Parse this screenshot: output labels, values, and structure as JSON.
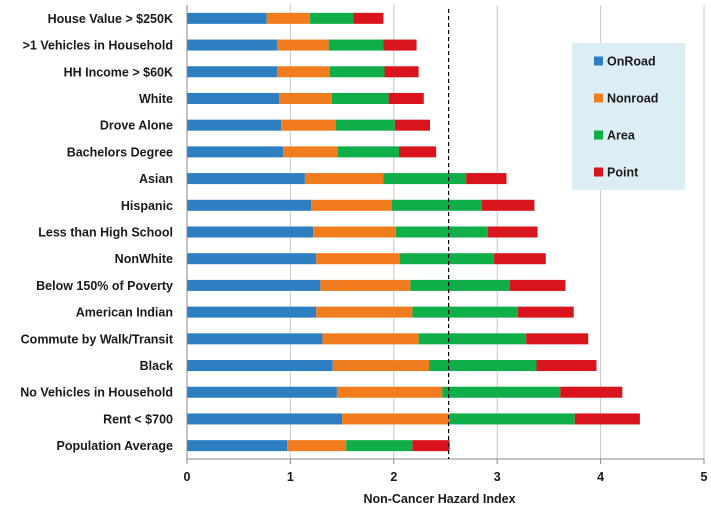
{
  "chart_data": {
    "type": "bar",
    "orientation": "horizontal",
    "stacked": true,
    "title": "",
    "xlabel": "Non-Cancer Hazard Index",
    "ylabel": "",
    "xlim": [
      0,
      5
    ],
    "xticks": [
      "0",
      "1",
      "2",
      "3",
      "4",
      "5"
    ],
    "grid": "vertical",
    "reference_line": 2.53,
    "legend_position": "top-right",
    "categories": [
      "House Value > $250K",
      ">1 Vehicles in Household",
      "HH Income > $60K",
      "White",
      "Drove Alone",
      "Bachelors Degree",
      "Asian",
      "Hispanic",
      "Less than High School",
      "NonWhite",
      "Below 150% of Poverty",
      "American Indian",
      "Commute by Walk/Transit",
      "Black",
      "No Vehicles in Household",
      "Rent < $700",
      "Population Average"
    ],
    "series": [
      {
        "name": "OnRoad",
        "color": "#2e7fc2",
        "values": [
          0.77,
          0.87,
          0.87,
          0.89,
          0.91,
          0.93,
          1.14,
          1.2,
          1.22,
          1.25,
          1.29,
          1.25,
          1.31,
          1.41,
          1.45,
          1.5,
          0.97
        ]
      },
      {
        "name": "Nonroad",
        "color": "#f07c1d",
        "values": [
          0.42,
          0.5,
          0.51,
          0.51,
          0.53,
          0.53,
          0.76,
          0.78,
          0.8,
          0.81,
          0.87,
          0.93,
          0.93,
          0.93,
          1.02,
          1.04,
          0.57
        ]
      },
      {
        "name": "Area",
        "color": "#0fae48",
        "values": [
          0.42,
          0.53,
          0.53,
          0.55,
          0.57,
          0.59,
          0.8,
          0.87,
          0.89,
          0.91,
          0.96,
          1.02,
          1.04,
          1.04,
          1.14,
          1.21,
          0.64
        ]
      },
      {
        "name": "Point",
        "color": "#d9141c",
        "values": [
          0.29,
          0.32,
          0.33,
          0.34,
          0.34,
          0.36,
          0.39,
          0.51,
          0.48,
          0.5,
          0.54,
          0.54,
          0.6,
          0.58,
          0.6,
          0.63,
          0.36
        ]
      }
    ]
  }
}
